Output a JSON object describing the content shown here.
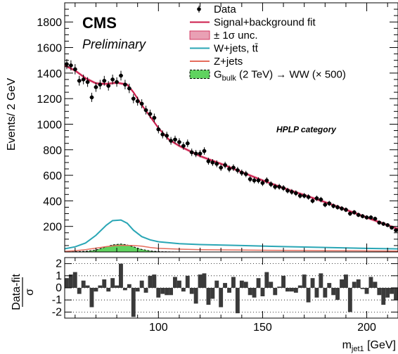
{
  "chart_data": [
    {
      "type": "scatter",
      "panel": "main",
      "experiment": "CMS",
      "status": "Preliminary",
      "category_label": "HPLP category",
      "ylabel": "Events/ 2 GeV",
      "xlim": [
        55,
        215
      ],
      "ylim": [
        0,
        1950
      ],
      "yticks": [
        200,
        400,
        600,
        800,
        1000,
        1200,
        1400,
        1600,
        1800
      ],
      "legend": [
        {
          "label": "Data",
          "style": "marker"
        },
        {
          "label": "Signal+background fit",
          "style": "line"
        },
        {
          "label": "± 1σ unc.",
          "style": "band"
        },
        {
          "label": "W+jets, tt̄",
          "style": "line"
        },
        {
          "label": "Z+jets",
          "style": "line"
        },
        {
          "label": "G",
          "sub": "bulk",
          "rest": " (2 TeV) → WW (× 500)",
          "style": "fill"
        }
      ],
      "colors": {
        "fit": "#cc1b4a",
        "band": "#e9a0b4",
        "wjets": "#2aa6b5",
        "zjets": "#e56c5c",
        "signal": "#5fd35f",
        "data": "#000000"
      },
      "data": {
        "x": [
          56,
          58,
          60,
          62,
          64,
          66,
          68,
          70,
          72,
          74,
          76,
          78,
          80,
          82,
          84,
          86,
          88,
          90,
          92,
          94,
          96,
          98,
          100,
          102,
          104,
          106,
          108,
          110,
          112,
          114,
          116,
          118,
          120,
          122,
          124,
          126,
          128,
          130,
          132,
          134,
          136,
          138,
          140,
          142,
          144,
          146,
          148,
          150,
          152,
          154,
          156,
          158,
          160,
          162,
          164,
          166,
          168,
          170,
          172,
          174,
          176,
          178,
          180,
          182,
          184,
          186,
          188,
          190,
          192,
          194,
          196,
          198,
          200,
          202,
          204,
          206,
          208,
          210,
          212,
          214
        ],
        "y": [
          1470,
          1460,
          1430,
          1340,
          1350,
          1330,
          1210,
          1290,
          1310,
          1340,
          1300,
          1350,
          1330,
          1380,
          1310,
          1280,
          1200,
          1180,
          1160,
          1110,
          1080,
          1050,
          960,
          920,
          910,
          870,
          880,
          860,
          830,
          850,
          780,
          770,
          770,
          790,
          710,
          700,
          690,
          660,
          680,
          650,
          660,
          640,
          620,
          610,
          570,
          560,
          560,
          540,
          560,
          530,
          510,
          510,
          500,
          480,
          470,
          460,
          440,
          440,
          430,
          400,
          420,
          410,
          370,
          380,
          360,
          350,
          340,
          330,
          300,
          310,
          290,
          280,
          270,
          270,
          260,
          230,
          220,
          210,
          190,
          170
        ],
        "yerr": [
          40,
          40,
          40,
          38,
          38,
          38,
          36,
          37,
          37,
          38,
          37,
          38,
          37,
          38,
          37,
          37,
          36,
          35,
          35,
          34,
          34,
          33,
          32,
          31,
          31,
          30,
          30,
          30,
          30,
          30,
          29,
          28,
          28,
          29,
          27,
          27,
          27,
          26,
          26,
          26,
          26,
          26,
          25,
          25,
          24,
          24,
          24,
          24,
          24,
          23,
          23,
          23,
          23,
          22,
          22,
          22,
          21,
          21,
          21,
          20,
          21,
          21,
          20,
          20,
          19,
          19,
          19,
          18,
          18,
          18,
          17,
          17,
          17,
          17,
          16,
          16,
          15,
          15,
          14,
          14
        ]
      },
      "fit": {
        "x": [
          55,
          60,
          65,
          70,
          75,
          80,
          85,
          88,
          92,
          96,
          100,
          105,
          110,
          115,
          120,
          130,
          140,
          150,
          160,
          170,
          180,
          190,
          200,
          210,
          215
        ],
        "y": [
          1460,
          1420,
          1360,
          1320,
          1315,
          1325,
          1310,
          1250,
          1150,
          1060,
          970,
          880,
          830,
          790,
          750,
          690,
          625,
          560,
          500,
          445,
          390,
          330,
          270,
          210,
          180
        ]
      },
      "wjets": {
        "x": [
          55,
          60,
          65,
          70,
          75,
          78,
          82,
          85,
          88,
          92,
          96,
          100,
          110,
          120,
          140,
          160,
          180,
          200,
          215
        ],
        "y": [
          25,
          40,
          70,
          130,
          210,
          245,
          250,
          225,
          170,
          120,
          95,
          80,
          65,
          58,
          50,
          42,
          35,
          28,
          24
        ]
      },
      "zjets": {
        "x": [
          55,
          60,
          65,
          70,
          75,
          80,
          84,
          88,
          92,
          96,
          100,
          110,
          120,
          140,
          160,
          180,
          200,
          215
        ],
        "y": [
          5,
          10,
          18,
          30,
          42,
          50,
          52,
          50,
          45,
          35,
          28,
          22,
          18,
          15,
          12,
          10,
          8,
          7
        ]
      },
      "signal": {
        "x": [
          55,
          60,
          65,
          70,
          74,
          78,
          82,
          85,
          88,
          92,
          96,
          100,
          105,
          110
        ],
        "y": [
          0,
          2,
          5,
          15,
          35,
          55,
          62,
          55,
          40,
          20,
          8,
          3,
          1,
          0
        ]
      }
    },
    {
      "type": "bar",
      "panel": "ratio",
      "ylabel": "Data-fit",
      "ylabel_denominator": "σ",
      "xlabel": "m",
      "xlabel_sub": "jet1",
      "xlabel_unit": " [GeV]",
      "xlim": [
        55,
        215
      ],
      "ylim": [
        -2.5,
        2.5
      ],
      "yticks": [
        -2,
        -1,
        0,
        1,
        2
      ],
      "xticks": [
        100,
        150,
        200
      ],
      "x": [
        56,
        58,
        60,
        62,
        64,
        66,
        68,
        70,
        72,
        74,
        76,
        78,
        80,
        82,
        84,
        86,
        88,
        90,
        92,
        94,
        96,
        98,
        100,
        102,
        104,
        106,
        108,
        110,
        112,
        114,
        116,
        118,
        120,
        122,
        124,
        126,
        128,
        130,
        132,
        134,
        136,
        138,
        140,
        142,
        144,
        146,
        148,
        150,
        152,
        154,
        156,
        158,
        160,
        162,
        164,
        166,
        168,
        170,
        172,
        174,
        176,
        178,
        180,
        182,
        184,
        186,
        188,
        190,
        192,
        194,
        196,
        198,
        200,
        202,
        204,
        206,
        208,
        210,
        212,
        214
      ],
      "values": [
        0.8,
        1.1,
        1.3,
        -0.5,
        0.6,
        0.2,
        -1.6,
        -0.3,
        0.2,
        0.7,
        -0.3,
        0.8,
        0.2,
        2.0,
        -0.2,
        0.3,
        -2.4,
        -0.3,
        0.6,
        -0.4,
        1.0,
        1.1,
        -0.8,
        -0.5,
        -0.6,
        -0.6,
        0.9,
        0.6,
        -0.3,
        1.0,
        -0.5,
        -1.3,
        1.1,
        1.2,
        -1.4,
        -0.9,
        0.6,
        -1.6,
        0.4,
        -0.4,
        0.9,
        -2.1,
        0.6,
        0.5,
        -0.6,
        -0.8,
        0.8,
        -0.7,
        1.3,
        0.5,
        -0.6,
        0.1,
        1.0,
        -0.3,
        -0.3,
        -0.4,
        0.2,
        1.1,
        -1.2,
        0.8,
        -0.8,
        1.2,
        -0.8,
        0.4,
        -0.6,
        -1.0,
        0.7,
        1.1,
        -2.0,
        0.5,
        0.7,
        -0.1,
        -0.5,
        0.9,
        0.5,
        -0.6,
        -1.4,
        -0.8,
        -0.5,
        -1.0
      ]
    }
  ]
}
